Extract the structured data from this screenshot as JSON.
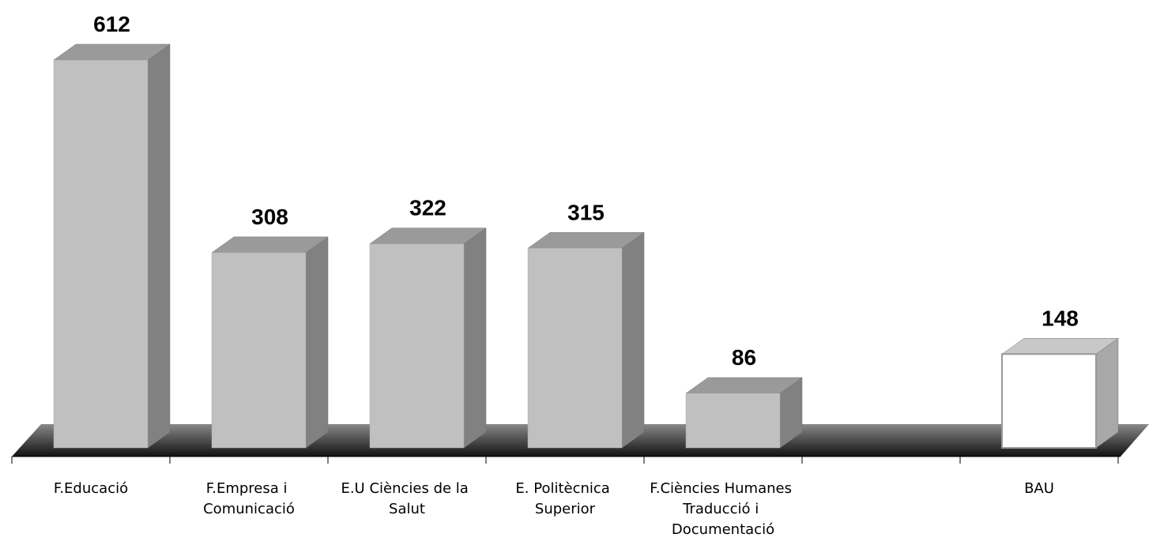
{
  "chart_data": {
    "type": "bar3d",
    "categories": [
      "F.Educació",
      "F.Empresa i Comunicació",
      "E.U Ciències de la Salut",
      "E. Politècnica Superior",
      "F.Ciències Humanes Traducció i Documentació",
      null,
      "BAU"
    ],
    "values": [
      612,
      308,
      322,
      315,
      86,
      null,
      148
    ],
    "colors": [
      "#c0c0c0",
      "#c0c0c0",
      "#c0c0c0",
      "#c0c0c0",
      "#c0c0c0",
      null,
      "#ffffff"
    ]
  }
}
